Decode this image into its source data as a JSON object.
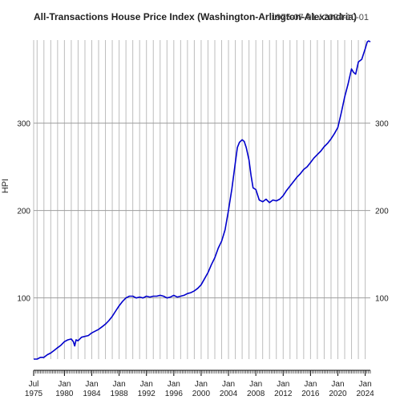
{
  "chart_data": {
    "type": "line",
    "title": "All-Transactions House Price Index (Washington-Arlington-Alexandria)",
    "date_range_label": "1975-07-01 / 2024-10-01",
    "ylabel": "HPI",
    "xlabel": "",
    "ylim": [
      30,
      395
    ],
    "xlim": [
      1975.5,
      2024.75
    ],
    "grid": true,
    "y_ticks": [
      100,
      200,
      300
    ],
    "y_tick_labels": [
      "100",
      "200",
      "300"
    ],
    "x_ticks": [
      {
        "year": 1975.5,
        "line1": "Jul",
        "line2": "1975"
      },
      {
        "year": 1980,
        "line1": "Jan",
        "line2": "1980"
      },
      {
        "year": 1984,
        "line1": "Jan",
        "line2": "1984"
      },
      {
        "year": 1988,
        "line1": "Jan",
        "line2": "1988"
      },
      {
        "year": 1992,
        "line1": "Jan",
        "line2": "1992"
      },
      {
        "year": 1996,
        "line1": "Jan",
        "line2": "1996"
      },
      {
        "year": 2000,
        "line1": "Jan",
        "line2": "2000"
      },
      {
        "year": 2004,
        "line1": "Jan",
        "line2": "2004"
      },
      {
        "year": 2008,
        "line1": "Jan",
        "line2": "2008"
      },
      {
        "year": 2012,
        "line1": "Jan",
        "line2": "2012"
      },
      {
        "year": 2016,
        "line1": "Jan",
        "line2": "2016"
      },
      {
        "year": 2020,
        "line1": "Jan",
        "line2": "2020"
      },
      {
        "year": 2024,
        "line1": "Jan",
        "line2": "2024"
      }
    ],
    "series": [
      {
        "name": "",
        "color": "#0000cc",
        "x": [
          1975.5,
          1976.0,
          1976.5,
          1977.0,
          1977.5,
          1978.0,
          1978.5,
          1979.0,
          1979.5,
          1980.0,
          1980.5,
          1981.0,
          1981.3,
          1981.5,
          1981.7,
          1982.0,
          1982.5,
          1983.0,
          1983.5,
          1984.0,
          1984.5,
          1985.0,
          1985.5,
          1986.0,
          1986.5,
          1987.0,
          1987.5,
          1988.0,
          1988.5,
          1989.0,
          1989.5,
          1990.0,
          1990.5,
          1991.0,
          1991.5,
          1992.0,
          1992.5,
          1993.0,
          1993.5,
          1994.0,
          1994.5,
          1995.0,
          1995.5,
          1996.0,
          1996.5,
          1997.0,
          1997.5,
          1998.0,
          1998.5,
          1999.0,
          1999.5,
          2000.0,
          2000.5,
          2001.0,
          2001.5,
          2002.0,
          2002.5,
          2003.0,
          2003.5,
          2004.0,
          2004.5,
          2005.0,
          2005.3,
          2005.6,
          2006.0,
          2006.3,
          2006.6,
          2007.0,
          2007.3,
          2007.6,
          2008.0,
          2008.5,
          2009.0,
          2009.5,
          2010.0,
          2010.5,
          2011.0,
          2011.5,
          2012.0,
          2012.5,
          2013.0,
          2013.5,
          2014.0,
          2014.5,
          2015.0,
          2015.5,
          2016.0,
          2016.5,
          2017.0,
          2017.5,
          2018.0,
          2018.5,
          2019.0,
          2019.5,
          2020.0,
          2020.5,
          2021.0,
          2021.5,
          2022.0,
          2022.3,
          2022.6,
          2023.0,
          2023.5,
          2024.0,
          2024.3,
          2024.5,
          2024.75
        ],
        "y": [
          30,
          30,
          32,
          32,
          35,
          37,
          40,
          43,
          46,
          50,
          52,
          53,
          50,
          45,
          52,
          51,
          55,
          56,
          57,
          60,
          62,
          64,
          67,
          70,
          74,
          79,
          85,
          91,
          96,
          100,
          102,
          102,
          100,
          101,
          100,
          102,
          101,
          102,
          102,
          103,
          102,
          100,
          101,
          103,
          101,
          102,
          103,
          105,
          106,
          108,
          111,
          115,
          122,
          129,
          138,
          146,
          157,
          165,
          178,
          200,
          225,
          255,
          272,
          278,
          281,
          279,
          272,
          258,
          240,
          226,
          224,
          212,
          210,
          213,
          209,
          212,
          211,
          213,
          217,
          223,
          228,
          233,
          238,
          242,
          247,
          250,
          255,
          260,
          264,
          268,
          273,
          277,
          282,
          288,
          295,
          312,
          330,
          345,
          362,
          358,
          356,
          370,
          373,
          385,
          393,
          394,
          393
        ]
      }
    ]
  }
}
